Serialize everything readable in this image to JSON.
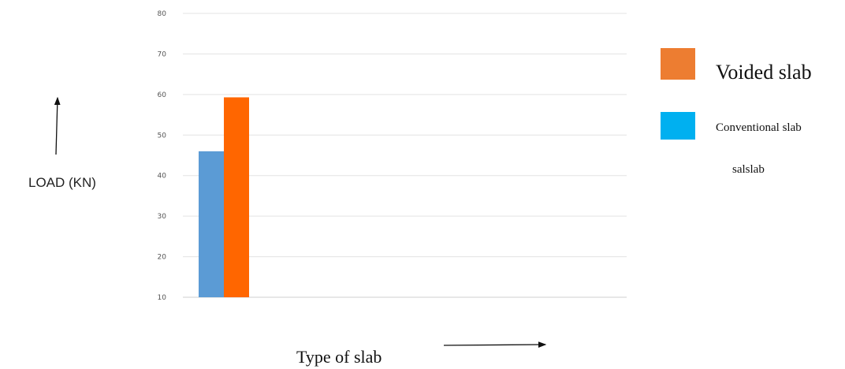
{
  "chart_data": {
    "type": "bar",
    "categories": [
      ""
    ],
    "series": [
      {
        "name": "Conventional slab",
        "values": [
          46
        ],
        "color": "#5b9bd5"
      },
      {
        "name": "Voided slab",
        "values": [
          59.3
        ],
        "color": "#ff6600"
      }
    ],
    "ylabel": "LOAD (KN)",
    "xlabel": "Type of slab",
    "ylim": [
      10,
      80
    ],
    "yticks": [
      10,
      20,
      30,
      40,
      50,
      60,
      70,
      80
    ],
    "grid": true,
    "legend": {
      "position": "right",
      "entries": [
        {
          "label": "Voided slab",
          "color": "#ed7d31"
        },
        {
          "label": "Conventional slab",
          "color": "#00b0f0"
        },
        {
          "label": "salslab"
        }
      ]
    }
  }
}
